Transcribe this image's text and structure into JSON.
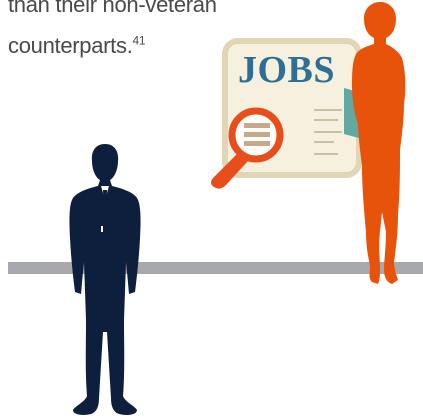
{
  "text": {
    "line1": "than their non-veteran",
    "line2": "counterparts.",
    "footnote": "41"
  },
  "jobs_card": {
    "title": "JOBS"
  },
  "colors": {
    "text": "#4a4a4a",
    "floor": "#a7a9ac",
    "jobs_title": "#2f6f97",
    "card_bg": "#f5f1de",
    "card_border": "#e0d6b6",
    "magnifier": "#e84e1b",
    "woman": "#e8530c",
    "man": "#0d1f3c",
    "folder": "#62a9a3"
  },
  "icons": {
    "man": "man-silhouette-icon",
    "woman": "woman-silhouette-icon",
    "magnifier": "magnifier-icon"
  }
}
